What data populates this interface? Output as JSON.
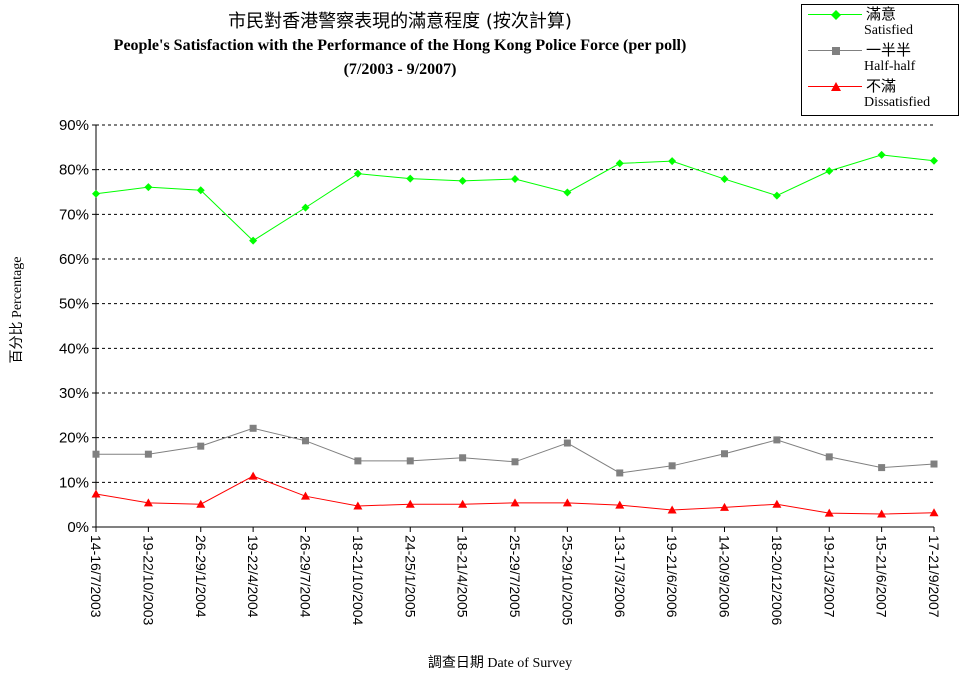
{
  "chart_data": {
    "type": "line",
    "title": "市民對香港警察表現的滿意程度 (按次計算)",
    "subtitle": "People's Satisfaction with the Performance of the Hong Kong Police Force (per poll)",
    "date_range": "(7/2003 - 9/2007)",
    "xlabel": "調查日期 Date of Survey",
    "ylabel": "百分比 Percentage",
    "ylim": [
      0,
      90
    ],
    "yticks": [
      "0%",
      "10%",
      "20%",
      "30%",
      "40%",
      "50%",
      "60%",
      "70%",
      "80%",
      "90%"
    ],
    "grid": true,
    "legend_position": "top-right",
    "categories": [
      "14-16/7/2003",
      "19-22/10/2003",
      "26-29/1/2004",
      "19-22/4/2004",
      "26-29/7/2004",
      "18-21/10/2004",
      "24-25/1/2005",
      "18-21/4/2005",
      "25-29/7/2005",
      "25-29/10/2005",
      "13-17/3/2006",
      "19-21/6/2006",
      "14-20/9/2006",
      "18-20/12/2006",
      "19-21/3/2007",
      "15-21/6/2007",
      "17-21/9/2007"
    ],
    "series": [
      {
        "name_cn": "滿意",
        "name_en": "Satisfied",
        "color": "#00ff00",
        "marker": "diamond",
        "values": [
          74.6,
          76.1,
          75.4,
          64.1,
          71.5,
          79.1,
          78.0,
          77.5,
          77.9,
          74.9,
          81.4,
          81.9,
          77.9,
          74.2,
          79.7,
          83.3,
          82.0
        ]
      },
      {
        "name_cn": "一半半",
        "name_en": "Half-half",
        "color": "#808080",
        "marker": "square",
        "values": [
          16.3,
          16.3,
          18.1,
          22.1,
          19.3,
          14.8,
          14.8,
          15.5,
          14.6,
          18.8,
          12.1,
          13.7,
          16.4,
          19.5,
          15.7,
          13.3,
          14.1
        ]
      },
      {
        "name_cn": "不滿",
        "name_en": "Dissatisfied",
        "color": "#ff0000",
        "marker": "triangle",
        "values": [
          7.4,
          5.4,
          5.1,
          11.4,
          6.9,
          4.7,
          5.1,
          5.1,
          5.4,
          5.4,
          4.9,
          3.8,
          4.4,
          5.1,
          3.1,
          2.9,
          3.2
        ]
      }
    ]
  }
}
